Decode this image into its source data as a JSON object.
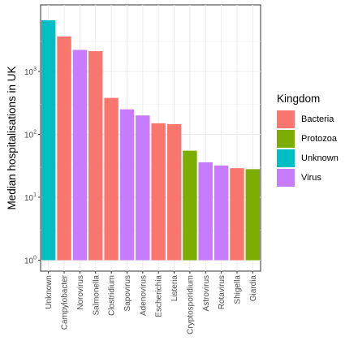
{
  "chart_data": {
    "type": "bar",
    "title": "",
    "xlabel": "",
    "ylabel": "Median hospitalisations in UK",
    "y_scale": "log10",
    "ylim": [
      1,
      7000
    ],
    "y_ticks": [
      1,
      10,
      100,
      1000
    ],
    "y_tick_labels": [
      {
        "base": "10",
        "exp": "0"
      },
      {
        "base": "10",
        "exp": "1"
      },
      {
        "base": "10",
        "exp": "2"
      },
      {
        "base": "10",
        "exp": "3"
      }
    ],
    "grid": true,
    "legend_position": "right",
    "legend_title": "Kingdom",
    "kingdoms": [
      {
        "name": "Bacteria",
        "color": "#F8766D"
      },
      {
        "name": "Protozoa",
        "color": "#7CAE00"
      },
      {
        "name": "Unknown",
        "color": "#00BFC4"
      },
      {
        "name": "Virus",
        "color": "#C77CFF"
      }
    ],
    "categories": [
      "Unknown",
      "Campylobacter",
      "Norovirus",
      "Salmonella",
      "Clostridium",
      "Sapovirus",
      "Adenovirus",
      "Escherichia",
      "Listeria",
      "Cryptosporidium",
      "Astrovirus",
      "Rotavirus",
      "Shigella",
      "Giardia"
    ],
    "values": [
      6500,
      3600,
      2200,
      2100,
      380,
      250,
      200,
      150,
      145,
      55,
      36,
      32,
      29,
      28
    ],
    "kingdom_of_category": [
      "Unknown",
      "Bacteria",
      "Virus",
      "Bacteria",
      "Bacteria",
      "Virus",
      "Virus",
      "Bacteria",
      "Bacteria",
      "Protozoa",
      "Virus",
      "Virus",
      "Bacteria",
      "Protozoa"
    ]
  }
}
